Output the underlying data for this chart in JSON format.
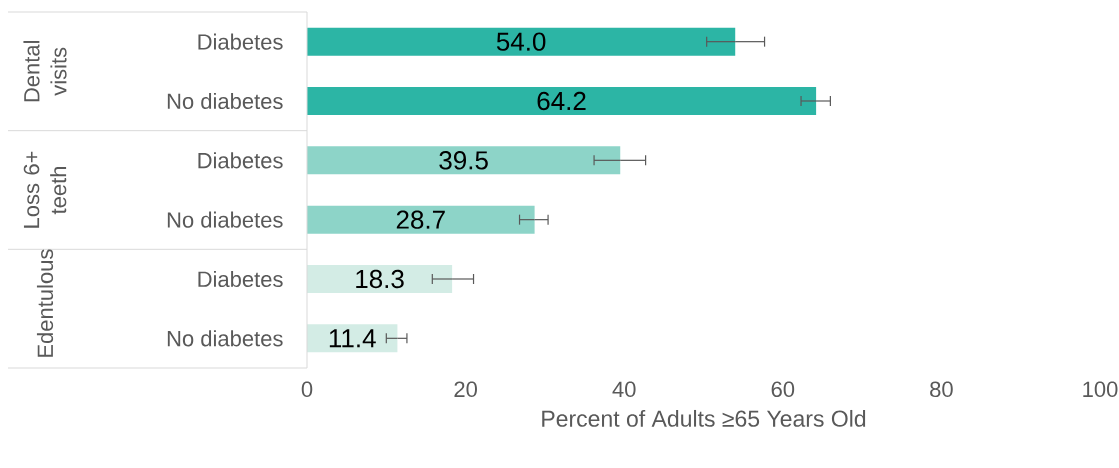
{
  "chart_data": {
    "type": "bar",
    "orientation": "horizontal",
    "categories": [
      "Diabetes",
      "No diabetes",
      "Diabetes",
      "No diabetes",
      "Diabetes",
      "No diabetes"
    ],
    "values": [
      54.0,
      64.2,
      39.5,
      28.7,
      18.3,
      11.4
    ],
    "errors": [
      [
        50.4,
        57.7
      ],
      [
        62.3,
        66.0
      ],
      [
        36.2,
        42.7
      ],
      [
        26.8,
        30.4
      ],
      [
        15.8,
        21.0
      ],
      [
        10.0,
        12.6
      ]
    ],
    "colors": [
      "#2cb5a5",
      "#2cb5a5",
      "#8dd4c8",
      "#8dd4c8",
      "#d3ece5",
      "#d3ece5"
    ],
    "value_labels": [
      "54.0",
      "64.2",
      "39.5",
      "28.7",
      "18.3",
      "11.4"
    ],
    "xlim": [
      0,
      100
    ],
    "xticks": [
      0,
      20,
      40,
      60,
      80,
      100
    ],
    "xlabel": "Percent of Adults ≥65 Years Old",
    "annotations": [
      "Dental visits",
      "Loss 6+ teeth",
      "Edentulous"
    ],
    "grid": false
  }
}
